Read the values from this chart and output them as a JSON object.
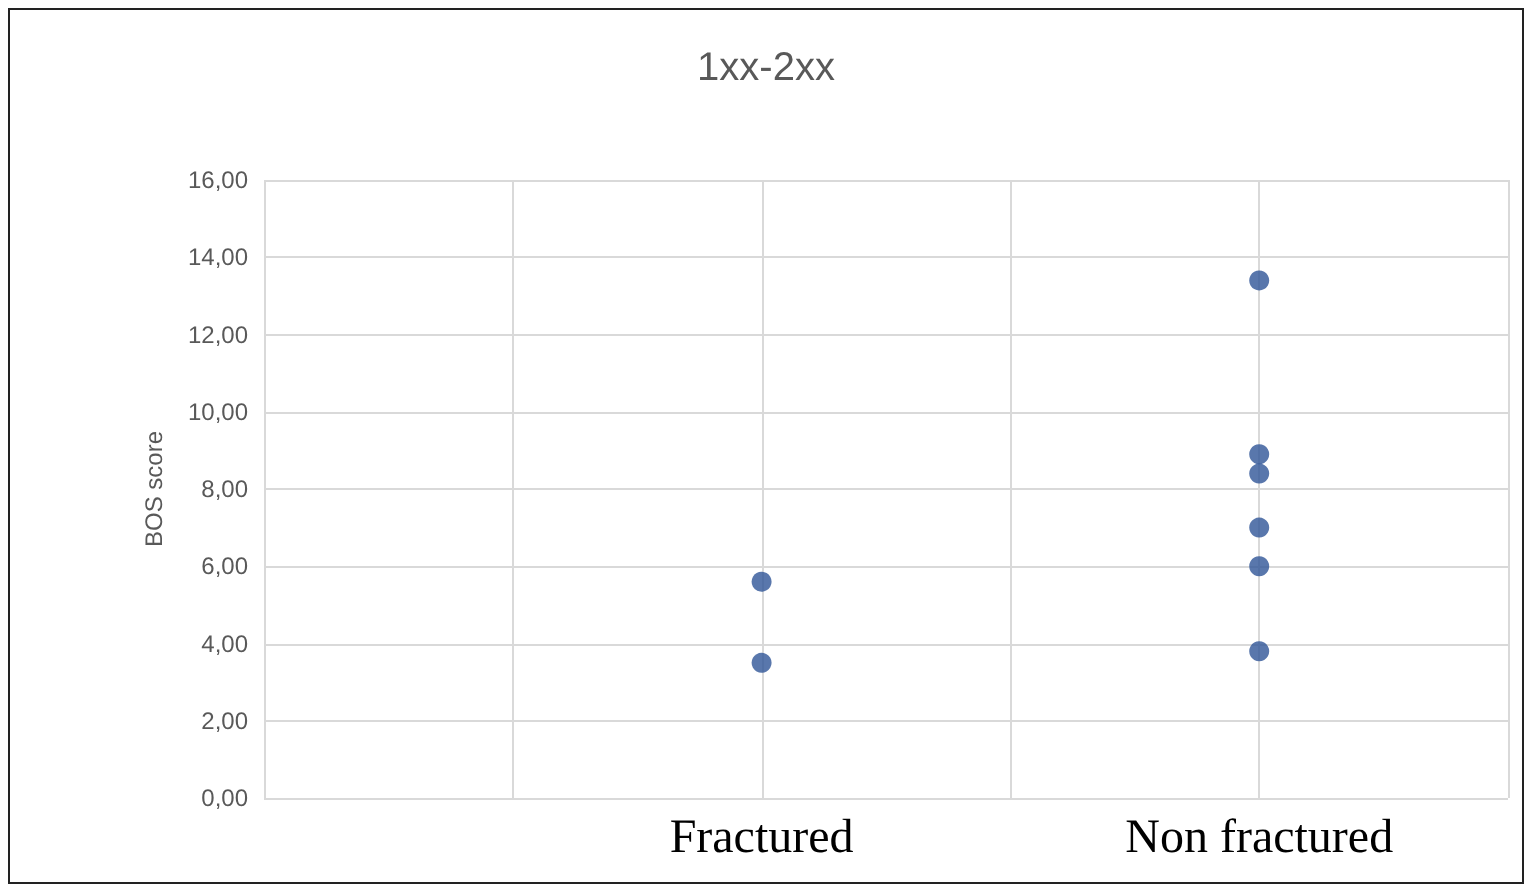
{
  "chart_data": {
    "type": "scatter",
    "title": "1xx-2xx",
    "ylabel": "BOS score",
    "categories": [
      null,
      null,
      "Fractured",
      null,
      "Non fractured",
      null
    ],
    "series": [
      {
        "color": "#2f5597",
        "x": [
          "Fractured",
          "Fractured",
          "Non fractured",
          "Non fractured",
          "Non fractured",
          "Non fractured",
          "Non fractured",
          "Non fractured"
        ],
        "values": [
          5.6,
          3.5,
          13.4,
          8.9,
          8.4,
          7.0,
          6.0,
          3.8
        ]
      }
    ],
    "marker": "circle",
    "ylim": [
      0,
      16
    ],
    "yticks": [
      {
        "value": 0,
        "label": "0,00"
      },
      {
        "value": 2,
        "label": "2,00"
      },
      {
        "value": 4,
        "label": "4,00"
      },
      {
        "value": 6,
        "label": "6,00"
      },
      {
        "value": 8,
        "label": "8,00"
      },
      {
        "value": 10,
        "label": "10,00"
      },
      {
        "value": 12,
        "label": "12,00"
      },
      {
        "value": 14,
        "label": "14,00"
      },
      {
        "value": 16,
        "label": "16,00"
      }
    ],
    "grid": true
  }
}
